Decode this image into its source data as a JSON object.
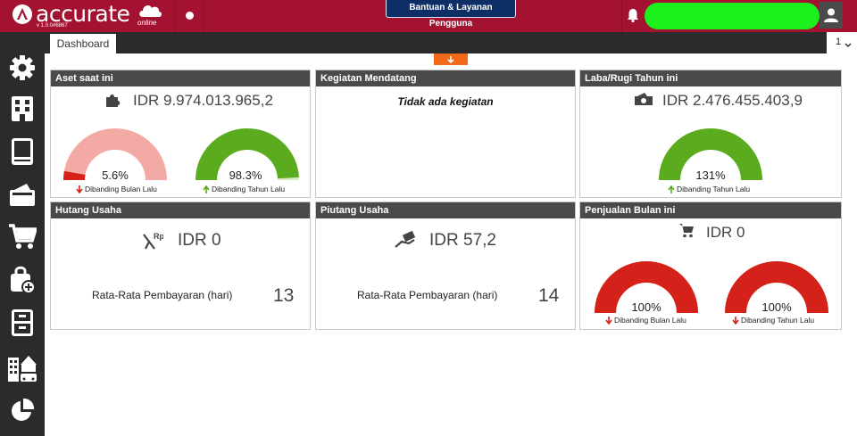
{
  "app": {
    "logo_text": "accurate",
    "logo_sub": "online",
    "version": "v 1.0.0#6867",
    "help_button": "Bantuan & Layanan Pengguna"
  },
  "tabs": {
    "dashboard": "Dashboard",
    "counter": "1"
  },
  "colors": {
    "brand": "#a31230",
    "dark": "#2b2b2b",
    "header": "#4a4a4a",
    "green": "#5aab1e",
    "red": "#d4221a",
    "pink": "#f4aaa4",
    "orange": "#f26a19"
  },
  "sidebar": {
    "items": [
      {
        "icon": "gear-icon"
      },
      {
        "icon": "building-icon"
      },
      {
        "icon": "book-icon"
      },
      {
        "icon": "wallet-icon"
      },
      {
        "icon": "cart-icon"
      },
      {
        "icon": "shopping-bag-icon"
      },
      {
        "icon": "cabinet-icon"
      },
      {
        "icon": "buildings-icon"
      },
      {
        "icon": "pie-chart-icon"
      }
    ]
  },
  "cards": {
    "aset": {
      "title": "Aset saat ini",
      "amount": "IDR 9.974.013.965,2",
      "gauge1": {
        "value": 5.6,
        "label": "5.6%",
        "compare": "Dibanding Bulan Lalu",
        "direction": "down"
      },
      "gauge2": {
        "value": 98.3,
        "label": "98.3%",
        "compare": "Dibanding Tahun Lalu",
        "direction": "up"
      }
    },
    "kegiatan": {
      "title": "Kegiatan Mendatang",
      "empty_text": "Tidak ada kegiatan"
    },
    "laba": {
      "title": "Laba/Rugi Tahun ini",
      "amount": "IDR 2.476.455.403,9",
      "gauge1": {
        "value": 131,
        "label": "131%",
        "compare": "Dibanding Tahun Lalu",
        "direction": "up"
      }
    },
    "hutang": {
      "title": "Hutang Usaha",
      "amount": "IDR 0",
      "avg_label": "Rata-Rata Pembayaran (hari)",
      "avg_value": "13"
    },
    "piutang": {
      "title": "Piutang Usaha",
      "amount": "IDR 57,2",
      "avg_label": "Rata-Rata Pembayaran (hari)",
      "avg_value": "14"
    },
    "penjualan": {
      "title": "Penjualan Bulan ini",
      "amount": "IDR 0",
      "gauge1": {
        "value": 100,
        "label": "100%",
        "compare": "Dibanding Bulan Lalu",
        "direction": "down"
      },
      "gauge2": {
        "value": 100,
        "label": "100%",
        "compare": "Dibanding Tahun Lalu",
        "direction": "down"
      }
    }
  }
}
